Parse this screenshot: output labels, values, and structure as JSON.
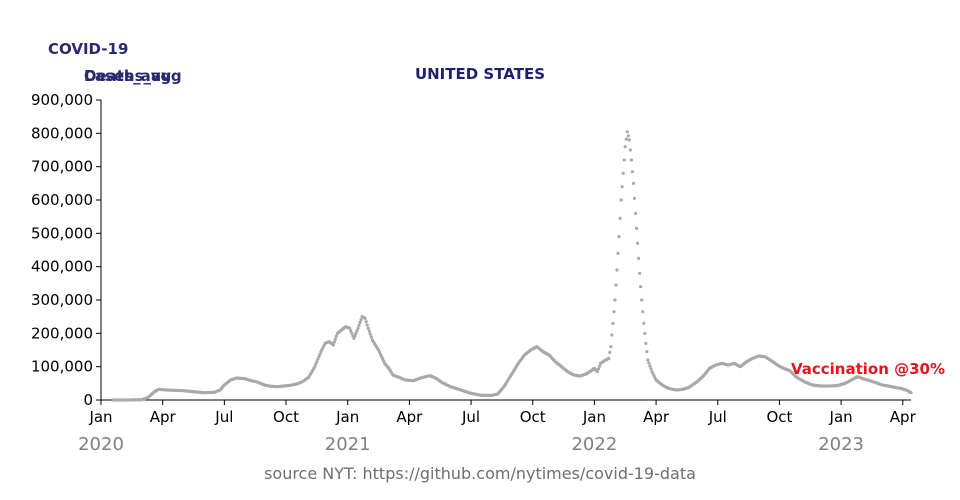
{
  "chart_data": {
    "type": "scatter",
    "title": "UNITED STATES",
    "variable_label": "COVID-19",
    "ylabel_a": "Deaths_avg",
    "ylabel_b": "Cases_avg",
    "ylim": [
      0,
      900000
    ],
    "yticks": [
      "900,000",
      "800,000",
      "700,000",
      "600,000",
      "500,000",
      "400,000",
      "300,000",
      "200,000",
      "100,000",
      "0"
    ],
    "xticks": [
      "Jan",
      "Apr",
      "Jul",
      "Oct",
      "Jan",
      "Apr",
      "Jul",
      "Oct",
      "Jan",
      "Apr",
      "Jul",
      "Oct",
      "Jan",
      "Apr"
    ],
    "years": [
      "2020",
      "2021",
      "2022",
      "2023"
    ],
    "annotation": "Vaccination @30%",
    "source": "source NYT: https://github.com/nytimes/covid-19-data",
    "point_color": "#a9a9a9",
    "annotation_color": "#e8141b",
    "grid": false,
    "series": [
      {
        "x_unit": "months since Jan 2020",
        "points": [
          [
            0.6,
            0
          ],
          [
            1.0,
            0
          ],
          [
            1.5,
            200
          ],
          [
            2.0,
            1000
          ],
          [
            2.3,
            8000
          ],
          [
            2.6,
            25000
          ],
          [
            2.8,
            32000
          ],
          [
            3.2,
            30000
          ],
          [
            3.6,
            29000
          ],
          [
            4.0,
            28000
          ],
          [
            4.5,
            25000
          ],
          [
            5.0,
            22000
          ],
          [
            5.5,
            23000
          ],
          [
            5.8,
            30000
          ],
          [
            6.0,
            45000
          ],
          [
            6.3,
            60000
          ],
          [
            6.6,
            66000
          ],
          [
            7.0,
            64000
          ],
          [
            7.3,
            58000
          ],
          [
            7.6,
            54000
          ],
          [
            8.0,
            44000
          ],
          [
            8.3,
            41000
          ],
          [
            8.6,
            40000
          ],
          [
            8.9,
            42000
          ],
          [
            9.2,
            44000
          ],
          [
            9.5,
            48000
          ],
          [
            9.8,
            55000
          ],
          [
            10.1,
            68000
          ],
          [
            10.4,
            100000
          ],
          [
            10.7,
            145000
          ],
          [
            10.9,
            170000
          ],
          [
            11.1,
            175000
          ],
          [
            11.3,
            165000
          ],
          [
            11.5,
            200000
          ],
          [
            11.7,
            210000
          ],
          [
            11.9,
            220000
          ],
          [
            12.1,
            215000
          ],
          [
            12.3,
            185000
          ],
          [
            12.5,
            215000
          ],
          [
            12.7,
            250000
          ],
          [
            12.85,
            245000
          ],
          [
            13.0,
            215000
          ],
          [
            13.2,
            180000
          ],
          [
            13.5,
            150000
          ],
          [
            13.8,
            110000
          ],
          [
            14.0,
            95000
          ],
          [
            14.2,
            75000
          ],
          [
            14.5,
            68000
          ],
          [
            14.8,
            60000
          ],
          [
            15.2,
            58000
          ],
          [
            15.5,
            65000
          ],
          [
            15.8,
            70000
          ],
          [
            16.0,
            73000
          ],
          [
            16.3,
            65000
          ],
          [
            16.6,
            52000
          ],
          [
            17.0,
            40000
          ],
          [
            17.5,
            30000
          ],
          [
            18.0,
            20000
          ],
          [
            18.5,
            14000
          ],
          [
            19.0,
            14000
          ],
          [
            19.3,
            18000
          ],
          [
            19.6,
            40000
          ],
          [
            20.0,
            80000
          ],
          [
            20.3,
            110000
          ],
          [
            20.6,
            135000
          ],
          [
            20.9,
            150000
          ],
          [
            21.2,
            160000
          ],
          [
            21.5,
            145000
          ],
          [
            21.8,
            135000
          ],
          [
            22.1,
            115000
          ],
          [
            22.4,
            100000
          ],
          [
            22.7,
            85000
          ],
          [
            23.0,
            75000
          ],
          [
            23.3,
            72000
          ],
          [
            23.6,
            78000
          ],
          [
            23.8,
            86000
          ],
          [
            24.0,
            95000
          ],
          [
            24.15,
            85000
          ],
          [
            24.3,
            110000
          ],
          [
            24.5,
            118000
          ],
          [
            24.7,
            125000
          ],
          [
            24.8,
            160000
          ],
          [
            24.9,
            230000
          ],
          [
            25.0,
            300000
          ],
          [
            25.1,
            390000
          ],
          [
            25.2,
            490000
          ],
          [
            25.3,
            600000
          ],
          [
            25.4,
            680000
          ],
          [
            25.5,
            760000
          ],
          [
            25.6,
            805000
          ],
          [
            25.7,
            780000
          ],
          [
            25.8,
            720000
          ],
          [
            25.9,
            650000
          ],
          [
            26.0,
            560000
          ],
          [
            26.1,
            470000
          ],
          [
            26.2,
            380000
          ],
          [
            26.3,
            300000
          ],
          [
            26.4,
            230000
          ],
          [
            26.5,
            170000
          ],
          [
            26.6,
            120000
          ],
          [
            26.8,
            85000
          ],
          [
            27.0,
            60000
          ],
          [
            27.3,
            45000
          ],
          [
            27.6,
            35000
          ],
          [
            28.0,
            30000
          ],
          [
            28.3,
            32000
          ],
          [
            28.6,
            38000
          ],
          [
            29.0,
            55000
          ],
          [
            29.3,
            72000
          ],
          [
            29.6,
            95000
          ],
          [
            29.9,
            105000
          ],
          [
            30.2,
            110000
          ],
          [
            30.5,
            105000
          ],
          [
            30.8,
            110000
          ],
          [
            31.1,
            100000
          ],
          [
            31.4,
            115000
          ],
          [
            31.7,
            125000
          ],
          [
            32.0,
            132000
          ],
          [
            32.3,
            130000
          ],
          [
            32.6,
            118000
          ],
          [
            32.9,
            105000
          ],
          [
            33.2,
            95000
          ],
          [
            33.5,
            88000
          ],
          [
            33.8,
            70000
          ],
          [
            34.2,
            55000
          ],
          [
            34.6,
            45000
          ],
          [
            35.0,
            42000
          ],
          [
            35.4,
            42000
          ],
          [
            35.8,
            43000
          ],
          [
            36.2,
            50000
          ],
          [
            36.5,
            60000
          ],
          [
            36.8,
            70000
          ],
          [
            37.1,
            63000
          ],
          [
            37.4,
            58000
          ],
          [
            37.7,
            52000
          ],
          [
            38.0,
            45000
          ],
          [
            38.3,
            42000
          ],
          [
            38.6,
            38000
          ],
          [
            38.9,
            35000
          ],
          [
            39.2,
            29000
          ],
          [
            39.4,
            22000
          ]
        ]
      }
    ]
  }
}
